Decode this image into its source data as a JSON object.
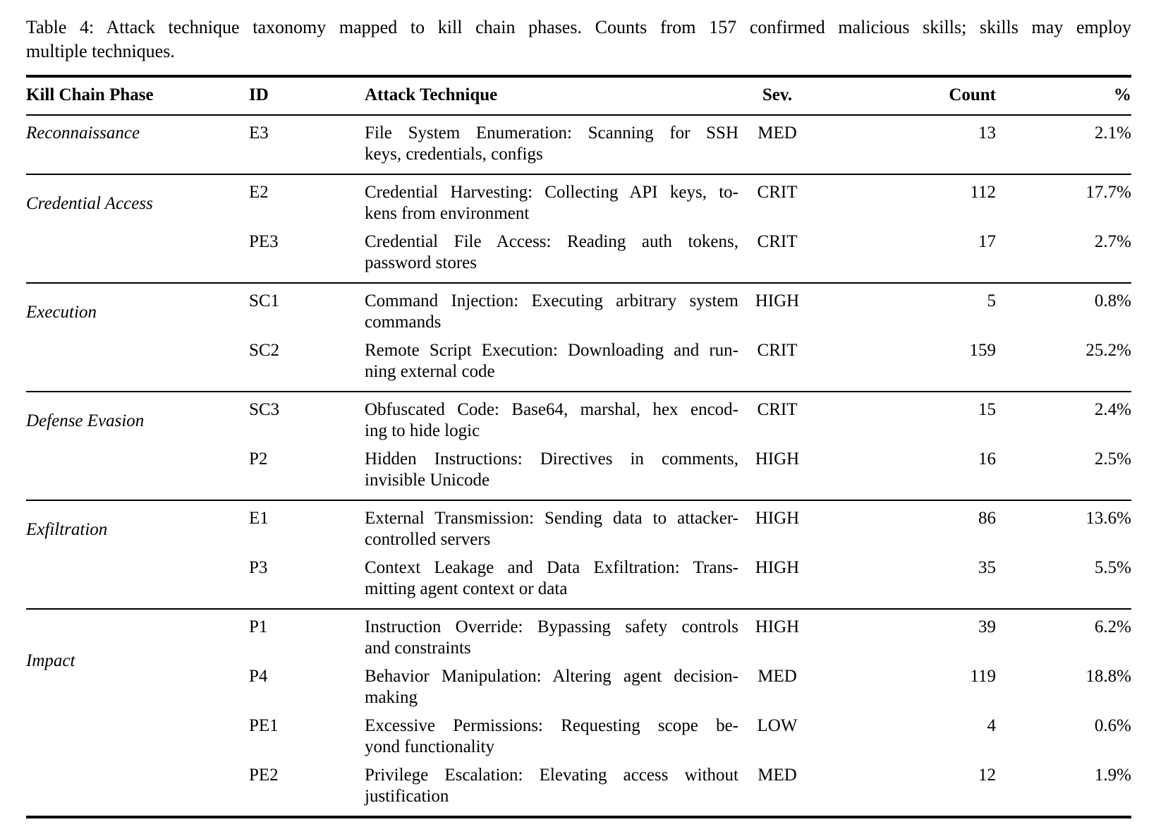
{
  "caption": {
    "lines": [
      "Table 4: Attack technique taxonomy mapped to kill chain phases. Counts from 157 confirmed malicious skills; skills may employ",
      "multiple techniques."
    ]
  },
  "table": {
    "headers": {
      "phase": "Kill Chain Phase",
      "id": "ID",
      "technique": "Attack Technique",
      "severity": "Sev.",
      "count": "Count",
      "percent": "%"
    },
    "groups": [
      {
        "phase": "Reconnaissance",
        "rows": [
          {
            "id": "E3",
            "technique_lines": [
              "File System Enumeration: Scanning for SSH",
              "keys, credentials, configs"
            ],
            "severity": "MED",
            "count": "13",
            "percent": "2.1%"
          }
        ]
      },
      {
        "phase": "Credential Access",
        "rows": [
          {
            "id": "E2",
            "technique_lines": [
              "Credential Harvesting: Collecting API keys, to-",
              "kens from environment"
            ],
            "severity": "CRIT",
            "count": "112",
            "percent": "17.7%"
          },
          {
            "id": "PE3",
            "technique_lines": [
              "Credential File Access: Reading auth tokens,",
              "password stores"
            ],
            "severity": "CRIT",
            "count": "17",
            "percent": "2.7%"
          }
        ]
      },
      {
        "phase": "Execution",
        "rows": [
          {
            "id": "SC1",
            "technique_lines": [
              "Command Injection: Executing arbitrary system",
              "commands"
            ],
            "severity": "HIGH",
            "count": "5",
            "percent": "0.8%"
          },
          {
            "id": "SC2",
            "technique_lines": [
              "Remote Script Execution: Downloading and run-",
              "ning external code"
            ],
            "severity": "CRIT",
            "count": "159",
            "percent": "25.2%"
          }
        ]
      },
      {
        "phase": "Defense Evasion",
        "rows": [
          {
            "id": "SC3",
            "technique_lines": [
              "Obfuscated Code: Base64, marshal, hex encod-",
              "ing to hide logic"
            ],
            "severity": "CRIT",
            "count": "15",
            "percent": "2.4%"
          },
          {
            "id": "P2",
            "technique_lines": [
              "Hidden Instructions: Directives in comments,",
              "invisible Unicode"
            ],
            "severity": "HIGH",
            "count": "16",
            "percent": "2.5%"
          }
        ]
      },
      {
        "phase": "Exfiltration",
        "rows": [
          {
            "id": "E1",
            "technique_lines": [
              "External Transmission: Sending data to attacker-",
              "controlled servers"
            ],
            "severity": "HIGH",
            "count": "86",
            "percent": "13.6%"
          },
          {
            "id": "P3",
            "technique_lines": [
              "Context Leakage and Data Exfiltration: Trans-",
              "mitting agent context or data"
            ],
            "severity": "HIGH",
            "count": "35",
            "percent": "5.5%"
          }
        ]
      },
      {
        "phase": "Impact",
        "rows": [
          {
            "id": "P1",
            "technique_lines": [
              "Instruction Override: Bypassing safety controls",
              "and constraints"
            ],
            "severity": "HIGH",
            "count": "39",
            "percent": "6.2%"
          },
          {
            "id": "P4",
            "technique_lines": [
              "Behavior Manipulation: Altering agent decision-",
              "making"
            ],
            "severity": "MED",
            "count": "119",
            "percent": "18.8%"
          },
          {
            "id": "PE1",
            "technique_lines": [
              "Excessive Permissions: Requesting scope be-",
              "yond functionality"
            ],
            "severity": "LOW",
            "count": "4",
            "percent": "0.6%"
          },
          {
            "id": "PE2",
            "technique_lines": [
              "Privilege Escalation: Elevating access without",
              "justification"
            ],
            "severity": "MED",
            "count": "12",
            "percent": "1.9%"
          }
        ]
      }
    ]
  }
}
